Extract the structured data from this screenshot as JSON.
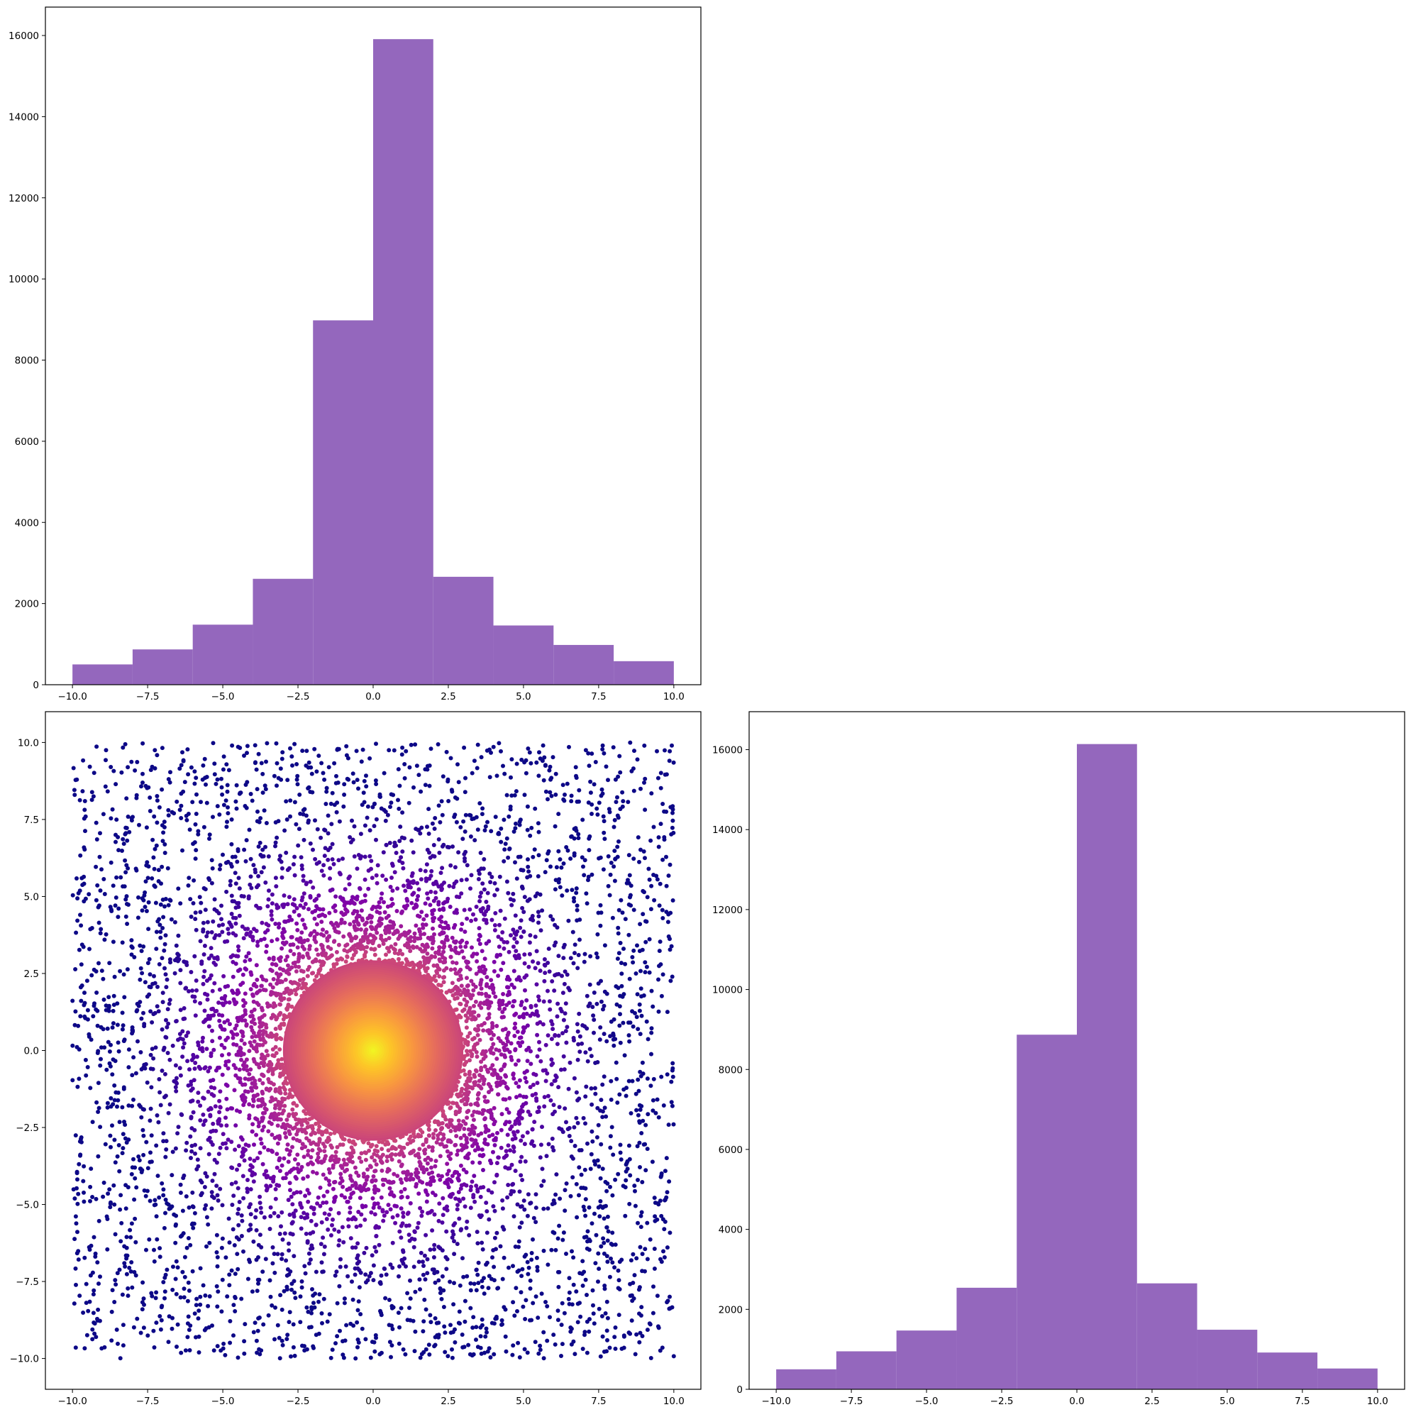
{
  "colors": {
    "hist_fill": "#9467bd",
    "scatter_colormap": "plasma",
    "background": "#ffffff"
  },
  "chart_data": [
    {
      "id": "hist-x",
      "type": "bar",
      "title": "",
      "xlabel": "",
      "ylabel": "",
      "bin_edges": [
        -10,
        -8,
        -6,
        -4,
        -2,
        0,
        2,
        4,
        6,
        8,
        10
      ],
      "values": [
        500,
        870,
        1480,
        2610,
        8980,
        15910,
        2660,
        1460,
        980,
        580
      ],
      "xlim": [
        -10.9,
        10.9
      ],
      "ylim": [
        0,
        16700
      ],
      "xticks": [
        -10.0,
        -7.5,
        -5.0,
        -2.5,
        0.0,
        2.5,
        5.0,
        7.5,
        10.0
      ],
      "xtick_labels": [
        "−10.0",
        "−7.5",
        "−5.0",
        "−2.5",
        "0.0",
        "2.5",
        "5.0",
        "7.5",
        "10.0"
      ],
      "yticks": [
        0,
        2000,
        4000,
        6000,
        8000,
        10000,
        12000,
        14000,
        16000
      ],
      "ytick_labels": [
        "0",
        "2000",
        "4000",
        "6000",
        "8000",
        "10000",
        "12000",
        "14000",
        "16000"
      ]
    },
    {
      "id": "scatter-xy",
      "type": "scatter",
      "title": "",
      "xlabel": "",
      "ylabel": "",
      "x_range": [
        -10,
        10
      ],
      "y_range": [
        -10,
        10
      ],
      "colormap": "plasma",
      "color_encodes": "point density (high near origin)",
      "xlim": [
        -10.9,
        10.9
      ],
      "ylim": [
        -11.0,
        11.0
      ],
      "xticks": [
        -10.0,
        -7.5,
        -5.0,
        -2.5,
        0.0,
        2.5,
        5.0,
        7.5,
        10.0
      ],
      "xtick_labels": [
        "−10.0",
        "−7.5",
        "−5.0",
        "−2.5",
        "0.0",
        "2.5",
        "5.0",
        "7.5",
        "10.0"
      ],
      "yticks": [
        -10.0,
        -7.5,
        -5.0,
        -2.5,
        0.0,
        2.5,
        5.0,
        7.5,
        10.0
      ],
      "ytick_labels": [
        "−10.0",
        "−7.5",
        "−5.0",
        "−2.5",
        "0.0",
        "2.5",
        "5.0",
        "7.5",
        "10.0"
      ]
    },
    {
      "id": "hist-y",
      "type": "bar",
      "title": "",
      "xlabel": "",
      "ylabel": "",
      "bin_edges": [
        -10,
        -8,
        -6,
        -4,
        -2,
        0,
        2,
        4,
        6,
        8,
        10
      ],
      "values": [
        500,
        950,
        1470,
        2540,
        8870,
        16140,
        2650,
        1490,
        920,
        520
      ],
      "xlim": [
        -10.9,
        10.9
      ],
      "ylim": [
        0,
        16950
      ],
      "xticks": [
        -10.0,
        -7.5,
        -5.0,
        -2.5,
        0.0,
        2.5,
        5.0,
        7.5,
        10.0
      ],
      "xtick_labels": [
        "−10.0",
        "−7.5",
        "−5.0",
        "−2.5",
        "0.0",
        "2.5",
        "5.0",
        "7.5",
        "10.0"
      ],
      "yticks": [
        0,
        2000,
        4000,
        6000,
        8000,
        10000,
        12000,
        14000,
        16000
      ],
      "ytick_labels": [
        "0",
        "2000",
        "4000",
        "6000",
        "8000",
        "10000",
        "12000",
        "14000",
        "16000"
      ]
    }
  ]
}
